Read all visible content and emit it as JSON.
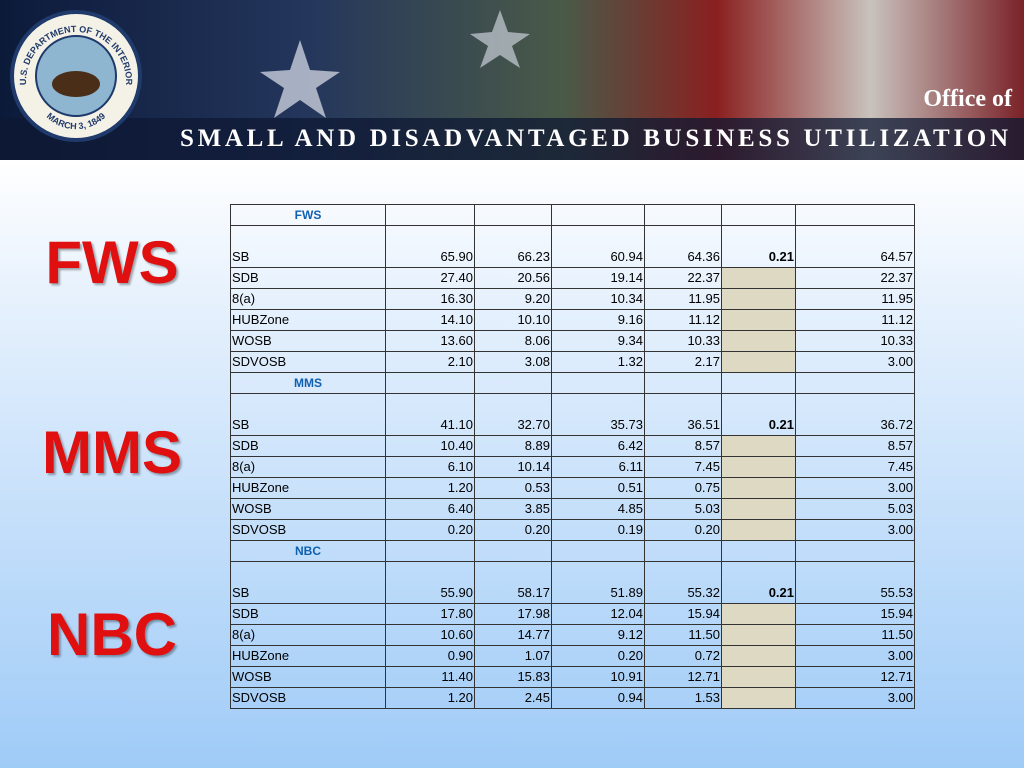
{
  "header": {
    "seal_top": "U.S. DEPARTMENT OF THE INTERIOR",
    "seal_bottom": "MARCH 3, 1849",
    "office": "Office of",
    "title": "SMALL AND DISADVANTAGED BUSINESS UTILIZATION"
  },
  "sections": [
    {
      "label": "FWS",
      "name": "FWS",
      "rows": [
        {
          "label": "SB",
          "values": [
            "65.90",
            "66.23",
            "60.94",
            "64.36",
            "0.21",
            "64.57"
          ]
        },
        {
          "label": "SDB",
          "values": [
            "27.40",
            "20.56",
            "19.14",
            "22.37",
            null,
            "22.37"
          ]
        },
        {
          "label": "8(a)",
          "values": [
            "16.30",
            "9.20",
            "10.34",
            "11.95",
            null,
            "11.95"
          ]
        },
        {
          "label": "HUBZone",
          "values": [
            "14.10",
            "10.10",
            "9.16",
            "11.12",
            null,
            "11.12"
          ]
        },
        {
          "label": "WOSB",
          "values": [
            "13.60",
            "8.06",
            "9.34",
            "10.33",
            null,
            "10.33"
          ]
        },
        {
          "label": "SDVOSB",
          "values": [
            "2.10",
            "3.08",
            "1.32",
            "2.17",
            null,
            "3.00"
          ]
        }
      ]
    },
    {
      "label": "MMS",
      "name": "MMS",
      "rows": [
        {
          "label": "SB",
          "values": [
            "41.10",
            "32.70",
            "35.73",
            "36.51",
            "0.21",
            "36.72"
          ]
        },
        {
          "label": "SDB",
          "values": [
            "10.40",
            "8.89",
            "6.42",
            "8.57",
            null,
            "8.57"
          ]
        },
        {
          "label": "8(a)",
          "values": [
            "6.10",
            "10.14",
            "6.11",
            "7.45",
            null,
            "7.45"
          ]
        },
        {
          "label": "HUBZone",
          "values": [
            "1.20",
            "0.53",
            "0.51",
            "0.75",
            null,
            "3.00"
          ]
        },
        {
          "label": "WOSB",
          "values": [
            "6.40",
            "3.85",
            "4.85",
            "5.03",
            null,
            "5.03"
          ]
        },
        {
          "label": "SDVOSB",
          "values": [
            "0.20",
            "0.20",
            "0.19",
            "0.20",
            null,
            "3.00"
          ]
        }
      ]
    },
    {
      "label": "NBC",
      "name": "NBC",
      "rows": [
        {
          "label": "SB",
          "values": [
            "55.90",
            "58.17",
            "51.89",
            "55.32",
            "0.21",
            "55.53"
          ]
        },
        {
          "label": "SDB",
          "values": [
            "17.80",
            "17.98",
            "12.04",
            "15.94",
            null,
            "15.94"
          ]
        },
        {
          "label": "8(a)",
          "values": [
            "10.60",
            "14.77",
            "9.12",
            "11.50",
            null,
            "11.50"
          ]
        },
        {
          "label": "HUBZone",
          "values": [
            "0.90",
            "1.07",
            "0.20",
            "0.72",
            null,
            "3.00"
          ]
        },
        {
          "label": "WOSB",
          "values": [
            "11.40",
            "15.83",
            "10.91",
            "12.71",
            null,
            "12.71"
          ]
        },
        {
          "label": "SDVOSB",
          "values": [
            "1.20",
            "2.45",
            "0.94",
            "1.53",
            null,
            "3.00"
          ]
        }
      ]
    }
  ]
}
